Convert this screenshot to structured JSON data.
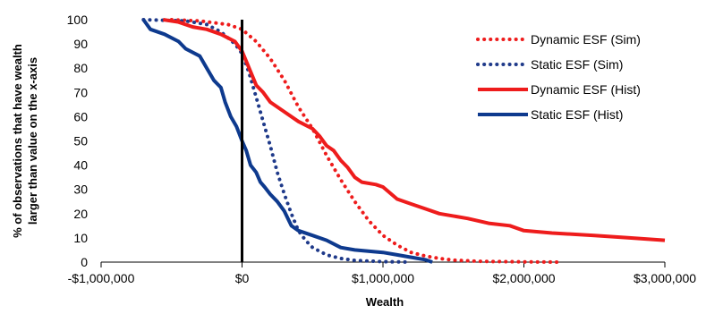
{
  "chart_data": {
    "type": "line",
    "title": "",
    "xlabel": "Wealth",
    "ylabel": [
      "% of observations that have wealth",
      "larger than value on the x-axis"
    ],
    "xlim": [
      -1000000,
      3000000
    ],
    "ylim": [
      0,
      100
    ],
    "grid": false,
    "legend_position": "top-right",
    "x_tick_labels": [
      "-$1,000,000",
      "$0",
      "$1,000,000",
      "$2,000,000",
      "$3,000,000"
    ],
    "y_tick_labels": [
      "0",
      "10",
      "20",
      "30",
      "40",
      "50",
      "60",
      "70",
      "80",
      "90",
      "100"
    ],
    "series": [
      {
        "name": "Dynamic ESF (Sim)",
        "color": "#ee1c1c",
        "style": "dotted",
        "points": [
          [
            -500000,
            100
          ],
          [
            -300000,
            99.5
          ],
          [
            -100000,
            98
          ],
          [
            0,
            96
          ],
          [
            100000,
            91
          ],
          [
            200000,
            84
          ],
          [
            300000,
            75
          ],
          [
            400000,
            64
          ],
          [
            500000,
            55
          ],
          [
            600000,
            44
          ],
          [
            700000,
            34
          ],
          [
            800000,
            25
          ],
          [
            900000,
            17
          ],
          [
            1000000,
            11
          ],
          [
            1100000,
            7
          ],
          [
            1200000,
            4
          ],
          [
            1300000,
            2.5
          ],
          [
            1400000,
            1.5
          ],
          [
            1500000,
            0.8
          ],
          [
            1700000,
            0.3
          ],
          [
            2000000,
            0.1
          ],
          [
            2250000,
            0
          ]
        ]
      },
      {
        "name": "Static ESF (Sim)",
        "color": "#1f3a8a",
        "style": "dotted",
        "points": [
          [
            -700000,
            100
          ],
          [
            -400000,
            99.5
          ],
          [
            -250000,
            98
          ],
          [
            -150000,
            95
          ],
          [
            -50000,
            90
          ],
          [
            0,
            86
          ],
          [
            50000,
            78
          ],
          [
            100000,
            68
          ],
          [
            150000,
            58
          ],
          [
            200000,
            48
          ],
          [
            250000,
            37
          ],
          [
            300000,
            28
          ],
          [
            350000,
            20
          ],
          [
            400000,
            13
          ],
          [
            450000,
            9
          ],
          [
            500000,
            6
          ],
          [
            600000,
            3
          ],
          [
            700000,
            1.5
          ],
          [
            800000,
            0.7
          ],
          [
            1000000,
            0.2
          ],
          [
            1200000,
            0
          ]
        ]
      },
      {
        "name": "Dynamic ESF (Hist)",
        "color": "#ee1c1c",
        "style": "solid",
        "points": [
          [
            -560000,
            100
          ],
          [
            -450000,
            99
          ],
          [
            -350000,
            97
          ],
          [
            -250000,
            96
          ],
          [
            -150000,
            94
          ],
          [
            -50000,
            91
          ],
          [
            0,
            87
          ],
          [
            50000,
            80
          ],
          [
            100000,
            73
          ],
          [
            150000,
            70
          ],
          [
            200000,
            66
          ],
          [
            300000,
            62
          ],
          [
            400000,
            58
          ],
          [
            500000,
            55
          ],
          [
            550000,
            52
          ],
          [
            600000,
            48
          ],
          [
            650000,
            46
          ],
          [
            700000,
            42
          ],
          [
            750000,
            39
          ],
          [
            800000,
            35
          ],
          [
            850000,
            33
          ],
          [
            950000,
            32
          ],
          [
            1000000,
            31
          ],
          [
            1100000,
            26
          ],
          [
            1150000,
            25
          ],
          [
            1200000,
            24
          ],
          [
            1300000,
            22
          ],
          [
            1400000,
            20
          ],
          [
            1600000,
            18
          ],
          [
            1750000,
            16
          ],
          [
            1900000,
            15
          ],
          [
            2000000,
            13
          ],
          [
            2200000,
            12
          ],
          [
            2500000,
            11
          ],
          [
            2750000,
            10
          ],
          [
            3000000,
            9
          ]
        ]
      },
      {
        "name": "Static ESF (Hist)",
        "color": "#0e3a8e",
        "style": "solid",
        "points": [
          [
            -700000,
            100
          ],
          [
            -650000,
            96
          ],
          [
            -550000,
            94
          ],
          [
            -450000,
            91
          ],
          [
            -400000,
            88
          ],
          [
            -300000,
            85
          ],
          [
            -250000,
            80
          ],
          [
            -200000,
            75
          ],
          [
            -150000,
            72
          ],
          [
            -120000,
            66
          ],
          [
            -80000,
            60
          ],
          [
            -40000,
            56
          ],
          [
            0,
            50
          ],
          [
            30000,
            46
          ],
          [
            60000,
            40
          ],
          [
            100000,
            37
          ],
          [
            130000,
            33
          ],
          [
            160000,
            31
          ],
          [
            200000,
            28
          ],
          [
            250000,
            25
          ],
          [
            300000,
            21
          ],
          [
            350000,
            15
          ],
          [
            400000,
            13
          ],
          [
            500000,
            11
          ],
          [
            600000,
            9
          ],
          [
            700000,
            6
          ],
          [
            800000,
            5
          ],
          [
            1000000,
            4
          ],
          [
            1100000,
            3
          ],
          [
            1200000,
            2
          ],
          [
            1300000,
            1
          ],
          [
            1350000,
            0
          ]
        ]
      }
    ]
  }
}
